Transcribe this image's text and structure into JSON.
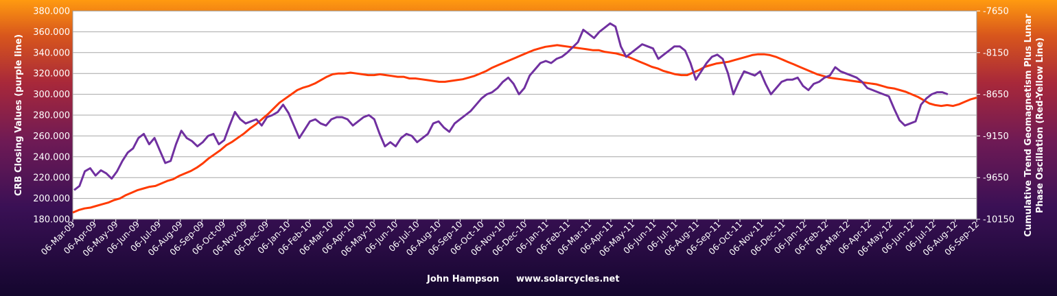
{
  "chart_data": {
    "type": "line",
    "footer": {
      "author": "John Hampson",
      "website": "www.solarcycles.net"
    },
    "y_left": {
      "label": "CRB Closing Values (purple line)",
      "range": [
        180,
        380
      ],
      "ticks": [
        "180.000",
        "200.000",
        "220.000",
        "240.000",
        "260.000",
        "280.000",
        "300.000",
        "320.000",
        "340.000",
        "360.000",
        "380.000"
      ]
    },
    "y_right": {
      "label_line1": "Cumulative Trend Geomagnetism Plus Lunar",
      "label_line2": "Phase Oscillation (Red-Yellow Line)",
      "range": [
        -10150,
        -7650
      ],
      "ticks": [
        "-10150",
        "-9650",
        "-9150",
        "-8650",
        "-8150",
        "-7650"
      ]
    },
    "x_ticks": [
      "06-Mar-09",
      "06-Apr-09",
      "06-May-09",
      "06-Jun-09",
      "06-Jul-09",
      "06-Aug-09",
      "06-Sep-09",
      "06-Oct-09",
      "06-Nov-09",
      "06-Dec-09",
      "06-Jan-10",
      "06-Feb-10",
      "06-Mar-10",
      "06-Apr-10",
      "06-May-10",
      "06-Jun-10",
      "06-Jul-10",
      "06-Aug-10",
      "06-Sep-10",
      "06-Oct-10",
      "06-Nov-10",
      "06-Dec-10",
      "06-Jan-11",
      "06-Feb-11",
      "06-Mar-11",
      "06-Apr-11",
      "06-May-11",
      "06-Jun-11",
      "06-Jul-11",
      "06-Aug-11",
      "06-Sep-11",
      "06-Oct-11",
      "06-Nov-11",
      "06-Dec-11",
      "06-Jan-12",
      "06-Feb-12",
      "06-Mar-12",
      "06-Apr-12",
      "06-May-12",
      "06-Jun-12",
      "06-Jul-12",
      "06-Aug-12",
      "06-Sep-12"
    ],
    "grid": "horizontal",
    "series": [
      {
        "name": "CRB Closing Values",
        "axis": "left",
        "color": "#7030a0",
        "values": [
          208,
          212,
          226,
          229,
          222,
          227,
          224,
          219,
          226,
          236,
          244,
          248,
          258,
          262,
          252,
          258,
          246,
          234,
          236,
          252,
          265,
          258,
          255,
          250,
          254,
          260,
          262,
          252,
          256,
          270,
          283,
          276,
          272,
          274,
          276,
          270,
          278,
          280,
          283,
          290,
          282,
          270,
          258,
          266,
          274,
          276,
          272,
          270,
          276,
          278,
          278,
          276,
          270,
          274,
          278,
          280,
          276,
          262,
          250,
          254,
          250,
          258,
          262,
          260,
          254,
          258,
          262,
          272,
          274,
          268,
          264,
          272,
          276,
          280,
          284,
          290,
          296,
          300,
          302,
          306,
          312,
          316,
          310,
          300,
          306,
          318,
          324,
          330,
          332,
          330,
          334,
          336,
          340,
          345,
          350,
          362,
          358,
          354,
          360,
          364,
          368,
          365,
          346,
          336,
          340,
          344,
          348,
          346,
          344,
          334,
          338,
          342,
          346,
          346,
          342,
          330,
          314,
          322,
          330,
          336,
          338,
          334,
          320,
          300,
          312,
          322,
          320,
          318,
          322,
          310,
          300,
          306,
          312,
          314,
          314,
          316,
          308,
          304,
          310,
          312,
          316,
          318,
          326,
          322,
          320,
          318,
          316,
          312,
          306,
          304,
          302,
          300,
          298,
          286,
          275,
          270,
          272,
          274,
          290,
          296,
          300,
          302,
          302,
          300
        ]
      },
      {
        "name": "Cumulative Trend Geomagnetism Plus Lunar Phase Oscillation",
        "axis": "right",
        "color": "#ff3a00",
        "values": [
          -10070,
          -10040,
          -10020,
          -10010,
          -9990,
          -9970,
          -9950,
          -9920,
          -9900,
          -9860,
          -9830,
          -9800,
          -9780,
          -9760,
          -9750,
          -9720,
          -9690,
          -9670,
          -9630,
          -9600,
          -9570,
          -9530,
          -9480,
          -9420,
          -9370,
          -9320,
          -9260,
          -9220,
          -9170,
          -9120,
          -9060,
          -9010,
          -8950,
          -8890,
          -8820,
          -8750,
          -8700,
          -8650,
          -8600,
          -8570,
          -8550,
          -8520,
          -8480,
          -8440,
          -8410,
          -8400,
          -8400,
          -8390,
          -8400,
          -8410,
          -8420,
          -8420,
          -8410,
          -8420,
          -8430,
          -8440,
          -8440,
          -8460,
          -8460,
          -8470,
          -8480,
          -8490,
          -8500,
          -8500,
          -8490,
          -8480,
          -8470,
          -8450,
          -8430,
          -8400,
          -8370,
          -8330,
          -8300,
          -8270,
          -8240,
          -8210,
          -8180,
          -8150,
          -8120,
          -8100,
          -8080,
          -8070,
          -8060,
          -8070,
          -8080,
          -8090,
          -8100,
          -8110,
          -8120,
          -8120,
          -8140,
          -8150,
          -8160,
          -8180,
          -8200,
          -8230,
          -8260,
          -8290,
          -8320,
          -8340,
          -8370,
          -8390,
          -8410,
          -8420,
          -8420,
          -8390,
          -8360,
          -8320,
          -8300,
          -8280,
          -8270,
          -8260,
          -8240,
          -8220,
          -8200,
          -8180,
          -8170,
          -8170,
          -8180,
          -8200,
          -8230,
          -8260,
          -8290,
          -8320,
          -8350,
          -8380,
          -8410,
          -8430,
          -8450,
          -8460,
          -8470,
          -8480,
          -8490,
          -8500,
          -8510,
          -8520,
          -8530,
          -8550,
          -8570,
          -8580,
          -8600,
          -8620,
          -8650,
          -8680,
          -8720,
          -8760,
          -8780,
          -8790,
          -8780,
          -8790,
          -8770,
          -8740,
          -8710,
          -8690
        ]
      }
    ]
  }
}
